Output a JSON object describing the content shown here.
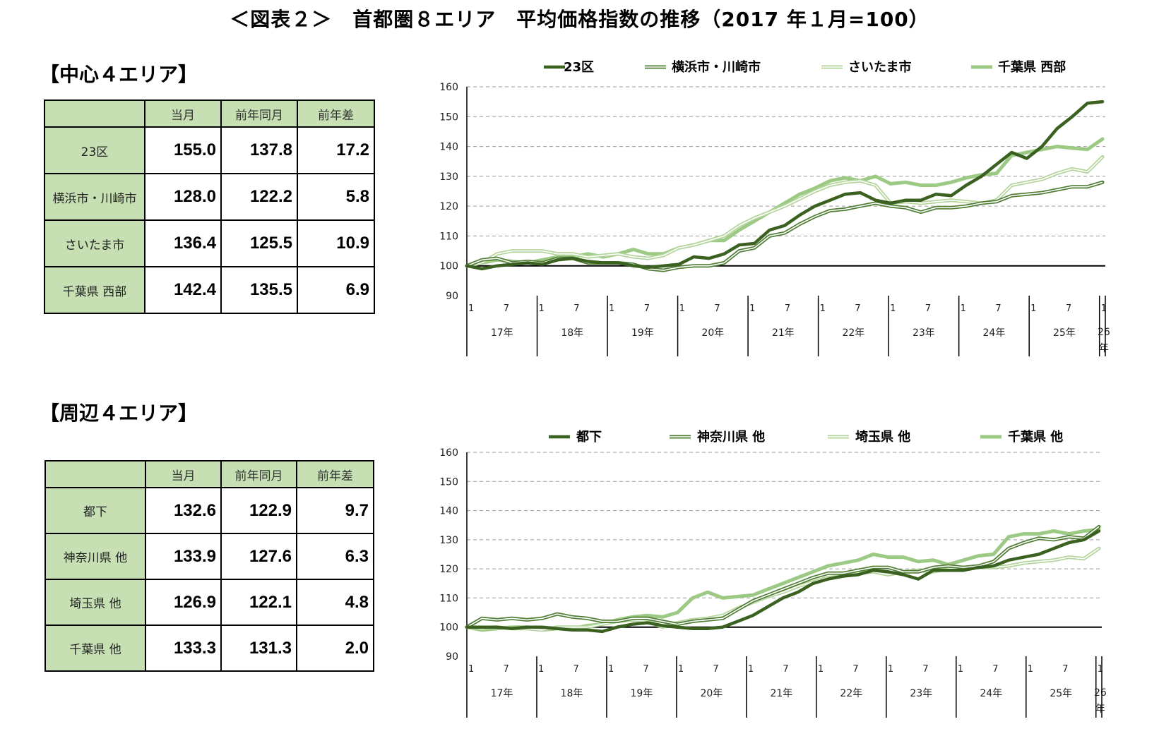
{
  "title": "＜図表２＞　首都圏８エリア　平均価格指数の推移（2017 年１月=100）",
  "colors": {
    "dark": "#3b6121",
    "mid": "#4f7d34",
    "light": "#b3d49b",
    "pale": "#9cc983",
    "table_header": "#c6e0b4"
  },
  "sections": [
    {
      "title": "【中心４エリア】",
      "table": {
        "headers": [
          "",
          "当月",
          "前年同月",
          "前年差"
        ],
        "rows": [
          {
            "label": "23区",
            "current": "155.0",
            "prev_year": "137.8",
            "diff": "17.2"
          },
          {
            "label": "横浜市・川崎市",
            "current": "128.0",
            "prev_year": "122.2",
            "diff": "5.8"
          },
          {
            "label": "さいたま市",
            "current": "136.4",
            "prev_year": "125.5",
            "diff": "10.9"
          },
          {
            "label": "千葉県 西部",
            "current": "142.4",
            "prev_year": "135.5",
            "diff": "6.9"
          }
        ]
      }
    },
    {
      "title": "【周辺４エリア】",
      "table": {
        "headers": [
          "",
          "当月",
          "前年同月",
          "前年差"
        ],
        "rows": [
          {
            "label": "都下",
            "current": "132.6",
            "prev_year": "122.9",
            "diff": "9.7"
          },
          {
            "label": "神奈川県 他",
            "current": "133.9",
            "prev_year": "127.6",
            "diff": "6.3"
          },
          {
            "label": "埼玉県 他",
            "current": "126.9",
            "prev_year": "122.1",
            "diff": "4.8"
          },
          {
            "label": "千葉県 他",
            "current": "133.3",
            "prev_year": "131.3",
            "diff": "2.0"
          }
        ]
      }
    }
  ],
  "chart_data": [
    {
      "type": "line",
      "ylim": [
        90,
        160
      ],
      "yticks": [
        90,
        100,
        110,
        120,
        130,
        140,
        150,
        160
      ],
      "grid": true,
      "legend_position": "top",
      "reference_line": 100,
      "x_month_ticks": [
        "1",
        "7"
      ],
      "years": [
        "17年",
        "18年",
        "19年",
        "20年",
        "21年",
        "22年",
        "23年",
        "24年",
        "25年",
        "26年"
      ],
      "series": [
        {
          "name": "23区",
          "style": "dark",
          "values": [
            100,
            99,
            100,
            100.5,
            101,
            100.5,
            102,
            102.5,
            101.5,
            101,
            101,
            100,
            99.5,
            100,
            100.5,
            103,
            102.5,
            104,
            107,
            107.5,
            112,
            113.5,
            117,
            120,
            122,
            124,
            124.5,
            122,
            121,
            122,
            122,
            124,
            123.5,
            127,
            130,
            134,
            138,
            136,
            140,
            146,
            150,
            154.5,
            155
          ]
        },
        {
          "name": "横浜市・川崎市",
          "style": "mid",
          "values": [
            100,
            102,
            102.5,
            101,
            101.5,
            101,
            102.5,
            102.5,
            101,
            101,
            101,
            100.5,
            99,
            98.5,
            99.5,
            100,
            100,
            101,
            105,
            106,
            110,
            111,
            114,
            116.5,
            118.5,
            119,
            120,
            121,
            120,
            119.5,
            118,
            119.5,
            119.5,
            120,
            121,
            121.5,
            123.5,
            124,
            124.5,
            125.5,
            126.5,
            126.5,
            128
          ]
        },
        {
          "name": "さいたま市",
          "style": "light",
          "values": [
            100,
            101,
            104,
            105,
            105,
            105,
            104,
            104,
            103,
            103.5,
            104,
            103,
            102.5,
            103.5,
            106,
            107,
            108.5,
            110,
            113.5,
            116,
            118,
            120,
            122.5,
            125,
            127,
            128,
            128.5,
            127,
            121,
            121.5,
            121,
            121.5,
            122,
            121.5,
            121,
            122,
            127,
            128,
            129,
            131,
            132.5,
            131.5,
            136.5
          ]
        },
        {
          "name": "千葉県 西部",
          "style": "pale",
          "values": [
            100,
            101,
            102,
            101.5,
            101,
            102,
            103,
            103,
            104,
            103,
            104,
            105.5,
            104,
            104,
            106,
            107,
            108.5,
            108.5,
            112,
            115,
            118,
            121,
            124,
            126,
            128.5,
            129.5,
            128.5,
            130,
            127.5,
            128,
            127,
            127,
            128,
            129.5,
            130.5,
            131,
            137,
            138,
            139,
            140,
            139.5,
            139,
            142.5
          ]
        }
      ]
    },
    {
      "type": "line",
      "ylim": [
        90,
        160
      ],
      "yticks": [
        90,
        100,
        110,
        120,
        130,
        140,
        150,
        160
      ],
      "grid": true,
      "legend_position": "top",
      "reference_line": 100,
      "x_month_ticks": [
        "1",
        "7"
      ],
      "years": [
        "17年",
        "18年",
        "19年",
        "20年",
        "21年",
        "22年",
        "23年",
        "24年",
        "25年",
        "26年"
      ],
      "series": [
        {
          "name": "都下",
          "style": "dark",
          "values": [
            100,
            100,
            100,
            99.5,
            100,
            100,
            99.5,
            99,
            99,
            98.5,
            100,
            101,
            101.5,
            100.5,
            100,
            99.5,
            99.5,
            100,
            102,
            104,
            107,
            110,
            112,
            115,
            116.5,
            117.5,
            118,
            119.5,
            119,
            118,
            116.5,
            119.5,
            119.5,
            119.5,
            120.5,
            121,
            123,
            124,
            125,
            127,
            129,
            130,
            133
          ]
        },
        {
          "name": "神奈川県 他",
          "style": "mid",
          "values": [
            100,
            103,
            102.5,
            103,
            102.5,
            103,
            104.5,
            103.5,
            103,
            102,
            102,
            103,
            103,
            102,
            101,
            102,
            102.5,
            103,
            106,
            109,
            111,
            113,
            115,
            117,
            118.5,
            118.5,
            119.5,
            120.5,
            120.5,
            119,
            119,
            120.5,
            121,
            120.5,
            121,
            122.5,
            127,
            129,
            130.5,
            130,
            131,
            130.5,
            134.5
          ]
        },
        {
          "name": "埼玉県 他",
          "style": "light",
          "values": [
            100,
            99.5,
            100,
            99.5,
            99.5,
            99,
            100,
            100,
            100,
            101,
            102,
            102.5,
            102,
            100,
            101.5,
            102.5,
            103,
            104,
            106.5,
            108.5,
            110.5,
            112,
            114,
            115.5,
            117,
            117.5,
            118.5,
            119,
            118,
            119,
            119.5,
            119,
            120,
            120,
            120.5,
            120.5,
            121,
            122,
            122.5,
            123,
            124,
            123.5,
            127
          ]
        },
        {
          "name": "千葉県 他",
          "style": "pale",
          "values": [
            100,
            99,
            99.5,
            100,
            100,
            99,
            99.5,
            99.5,
            100.5,
            101,
            102.5,
            103.5,
            104,
            103.5,
            105,
            110,
            112,
            110,
            110.5,
            111,
            113,
            115,
            117,
            119,
            121,
            122,
            123,
            125,
            124,
            124,
            122.5,
            123,
            121.5,
            123,
            124.5,
            125,
            131,
            132,
            132,
            133,
            132,
            133,
            133.5
          ]
        }
      ]
    }
  ]
}
